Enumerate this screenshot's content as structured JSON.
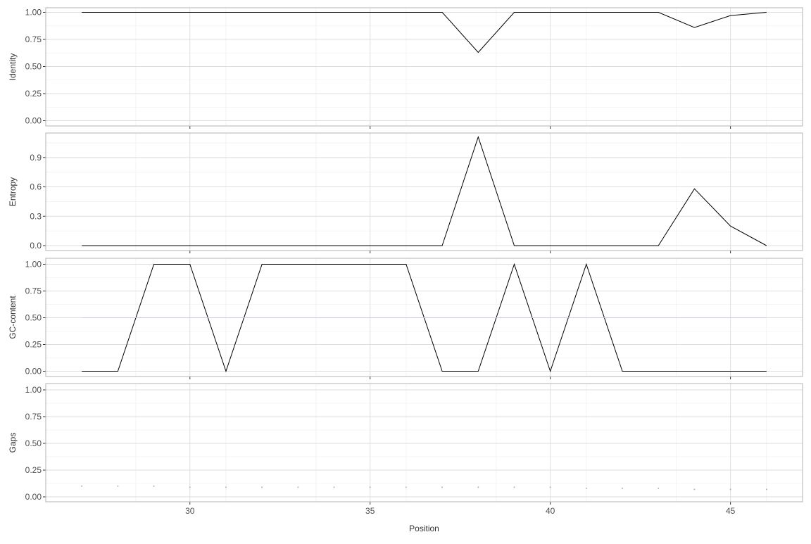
{
  "chart_data": {
    "type": "line",
    "xlabel": "Position",
    "x": [
      27,
      28,
      29,
      30,
      31,
      32,
      33,
      34,
      35,
      36,
      37,
      38,
      39,
      40,
      41,
      42,
      43,
      44,
      45,
      46
    ],
    "xlim": [
      26,
      47
    ],
    "x_ticks": [
      30,
      35,
      40,
      45
    ],
    "grid": true,
    "panels": [
      {
        "ylabel": "Identity",
        "ylim": [
          0,
          1
        ],
        "y_ticks": [
          "0.00",
          "0.25",
          "0.50",
          "0.75",
          "1.00"
        ],
        "series": [
          {
            "style": "line",
            "color": "#000000",
            "values": [
              1,
              1,
              1,
              1,
              1,
              1,
              1,
              1,
              1,
              1,
              1,
              0.63,
              1,
              1,
              1,
              1,
              1,
              0.86,
              0.97,
              1.0
            ]
          }
        ]
      },
      {
        "ylabel": "Entropy",
        "ylim": [
          0,
          1.1
        ],
        "y_ticks": [
          "0.0",
          "0.3",
          "0.6",
          "0.9"
        ],
        "series": [
          {
            "style": "line",
            "color": "#000000",
            "values": [
              0,
              0,
              0,
              0,
              0,
              0,
              0,
              0,
              0,
              0,
              0,
              1.11,
              0,
              0,
              0,
              0,
              0,
              0.58,
              0.2,
              0
            ]
          }
        ]
      },
      {
        "ylabel": "GC-content",
        "ylim": [
          0,
          1
        ],
        "y_ticks": [
          "0.00",
          "0.25",
          "0.50",
          "0.75",
          "1.00"
        ],
        "series": [
          {
            "style": "line",
            "color": "#000000",
            "values": [
              0,
              0,
              1,
              1,
              0,
              1,
              1,
              1,
              1,
              1,
              0,
              0,
              1,
              0,
              1,
              0,
              0,
              0,
              0,
              0
            ]
          },
          {
            "style": "line",
            "color": "#c8cbe8",
            "values": [
              0.5,
              0.5,
              0.5,
              0.5,
              0.5,
              0.5,
              0.5,
              0.5,
              0.5,
              0.5,
              0.5,
              0.5,
              0.5,
              0.5,
              0.5,
              0.5,
              0.5,
              0.5,
              0.5,
              0.5
            ]
          }
        ]
      },
      {
        "ylabel": "Gaps",
        "ylim": [
          0,
          1
        ],
        "y_ticks": [
          "0.00",
          "0.25",
          "0.50",
          "0.75",
          "1.00"
        ],
        "series": [
          {
            "style": "points",
            "color": "#b0b0b0",
            "values": [
              0.1,
              0.1,
              0.1,
              0.09,
              0.09,
              0.09,
              0.09,
              0.09,
              0.09,
              0.09,
              0.09,
              0.09,
              0.09,
              0.09,
              0.08,
              0.08,
              0.08,
              0.07,
              0.07,
              0.07
            ]
          }
        ]
      }
    ]
  }
}
